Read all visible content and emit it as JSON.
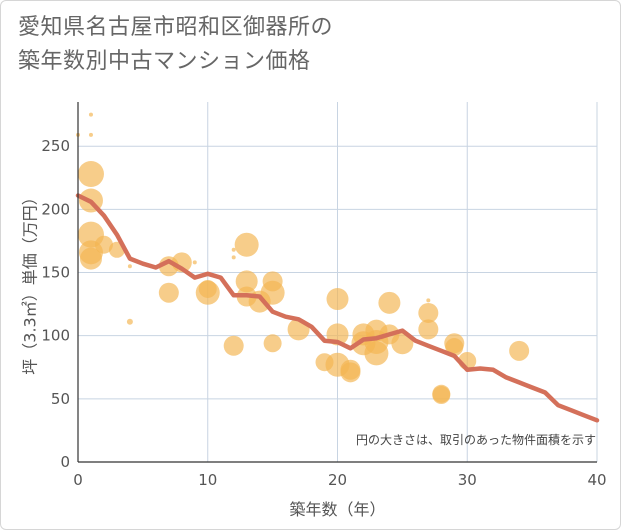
{
  "title_line1": "愛知県名古屋市昭和区御器所の",
  "title_line2": "築年数別中古マンション価格",
  "chart_data": {
    "type": "scatter",
    "xlabel": "築年数（年）",
    "ylabel": "坪（3.3㎡）単価（万円）",
    "xlim": [
      0,
      40
    ],
    "ylim": [
      0,
      285
    ],
    "xticks": [
      "0",
      "10",
      "20",
      "30",
      "40"
    ],
    "yticks": [
      "0",
      "50",
      "100",
      "150",
      "200",
      "250"
    ],
    "grid": true,
    "annotation": "円の大きさは、取引のあった物件面積を示す",
    "colors": {
      "bubble": "#f3b552",
      "line": "#d4705a",
      "grid": "#c8d4e2"
    },
    "points": [
      {
        "x": 0,
        "y": 259,
        "r": 2
      },
      {
        "x": 1,
        "y": 275,
        "r": 2
      },
      {
        "x": 1,
        "y": 259,
        "r": 2
      },
      {
        "x": 1,
        "y": 228,
        "r": 13
      },
      {
        "x": 1,
        "y": 207,
        "r": 12
      },
      {
        "x": 1,
        "y": 180,
        "r": 13
      },
      {
        "x": 1,
        "y": 166,
        "r": 12
      },
      {
        "x": 1,
        "y": 161,
        "r": 11
      },
      {
        "x": 2,
        "y": 172,
        "r": 9
      },
      {
        "x": 3,
        "y": 168,
        "r": 8
      },
      {
        "x": 4,
        "y": 155,
        "r": 2
      },
      {
        "x": 4,
        "y": 111,
        "r": 3
      },
      {
        "x": 7,
        "y": 155,
        "r": 10
      },
      {
        "x": 7,
        "y": 134,
        "r": 10
      },
      {
        "x": 8,
        "y": 158,
        "r": 10
      },
      {
        "x": 9,
        "y": 158,
        "r": 2
      },
      {
        "x": 10,
        "y": 137,
        "r": 9
      },
      {
        "x": 10,
        "y": 134,
        "r": 12
      },
      {
        "x": 12,
        "y": 162,
        "r": 2
      },
      {
        "x": 12,
        "y": 168,
        "r": 2
      },
      {
        "x": 12,
        "y": 92,
        "r": 10
      },
      {
        "x": 13,
        "y": 172,
        "r": 12
      },
      {
        "x": 13,
        "y": 143,
        "r": 11
      },
      {
        "x": 13,
        "y": 131,
        "r": 10
      },
      {
        "x": 14,
        "y": 127,
        "r": 11
      },
      {
        "x": 15,
        "y": 143,
        "r": 10
      },
      {
        "x": 15,
        "y": 134,
        "r": 12
      },
      {
        "x": 15,
        "y": 94,
        "r": 9
      },
      {
        "x": 17,
        "y": 105,
        "r": 11
      },
      {
        "x": 19,
        "y": 79,
        "r": 9
      },
      {
        "x": 20,
        "y": 129,
        "r": 11
      },
      {
        "x": 20,
        "y": 101,
        "r": 11
      },
      {
        "x": 20,
        "y": 77,
        "r": 12
      },
      {
        "x": 21,
        "y": 73,
        "r": 10
      },
      {
        "x": 21,
        "y": 71,
        "r": 10
      },
      {
        "x": 22,
        "y": 101,
        "r": 11
      },
      {
        "x": 22,
        "y": 94,
        "r": 12
      },
      {
        "x": 23,
        "y": 104,
        "r": 11
      },
      {
        "x": 23,
        "y": 95,
        "r": 12
      },
      {
        "x": 23,
        "y": 86,
        "r": 12
      },
      {
        "x": 24,
        "y": 126,
        "r": 11
      },
      {
        "x": 24,
        "y": 101,
        "r": 10
      },
      {
        "x": 25,
        "y": 94,
        "r": 11
      },
      {
        "x": 27,
        "y": 128,
        "r": 2
      },
      {
        "x": 27,
        "y": 118,
        "r": 10
      },
      {
        "x": 27,
        "y": 105,
        "r": 10
      },
      {
        "x": 28,
        "y": 54,
        "r": 9
      },
      {
        "x": 28,
        "y": 53,
        "r": 9
      },
      {
        "x": 29,
        "y": 94,
        "r": 10
      },
      {
        "x": 29,
        "y": 91,
        "r": 9
      },
      {
        "x": 30,
        "y": 80,
        "r": 9
      },
      {
        "x": 34,
        "y": 88,
        "r": 10
      }
    ],
    "trend": {
      "x": [
        0,
        1,
        2,
        3,
        4,
        5,
        6,
        7,
        8,
        9,
        10,
        11,
        12,
        13,
        14,
        15,
        16,
        17,
        18,
        19,
        20,
        21,
        22,
        23,
        24,
        25,
        26,
        27,
        28,
        29,
        30,
        31,
        32,
        33,
        34,
        35,
        36,
        37,
        38,
        39,
        40
      ],
      "y": [
        211,
        206,
        195,
        180,
        161,
        157,
        154,
        159,
        153,
        146,
        149,
        146,
        132,
        132,
        131,
        119,
        115,
        113,
        107,
        96,
        95,
        90,
        97,
        98,
        101,
        104,
        96,
        92,
        88,
        84,
        73,
        74,
        73,
        67,
        63,
        59,
        55,
        45,
        41,
        37,
        33
      ]
    }
  }
}
